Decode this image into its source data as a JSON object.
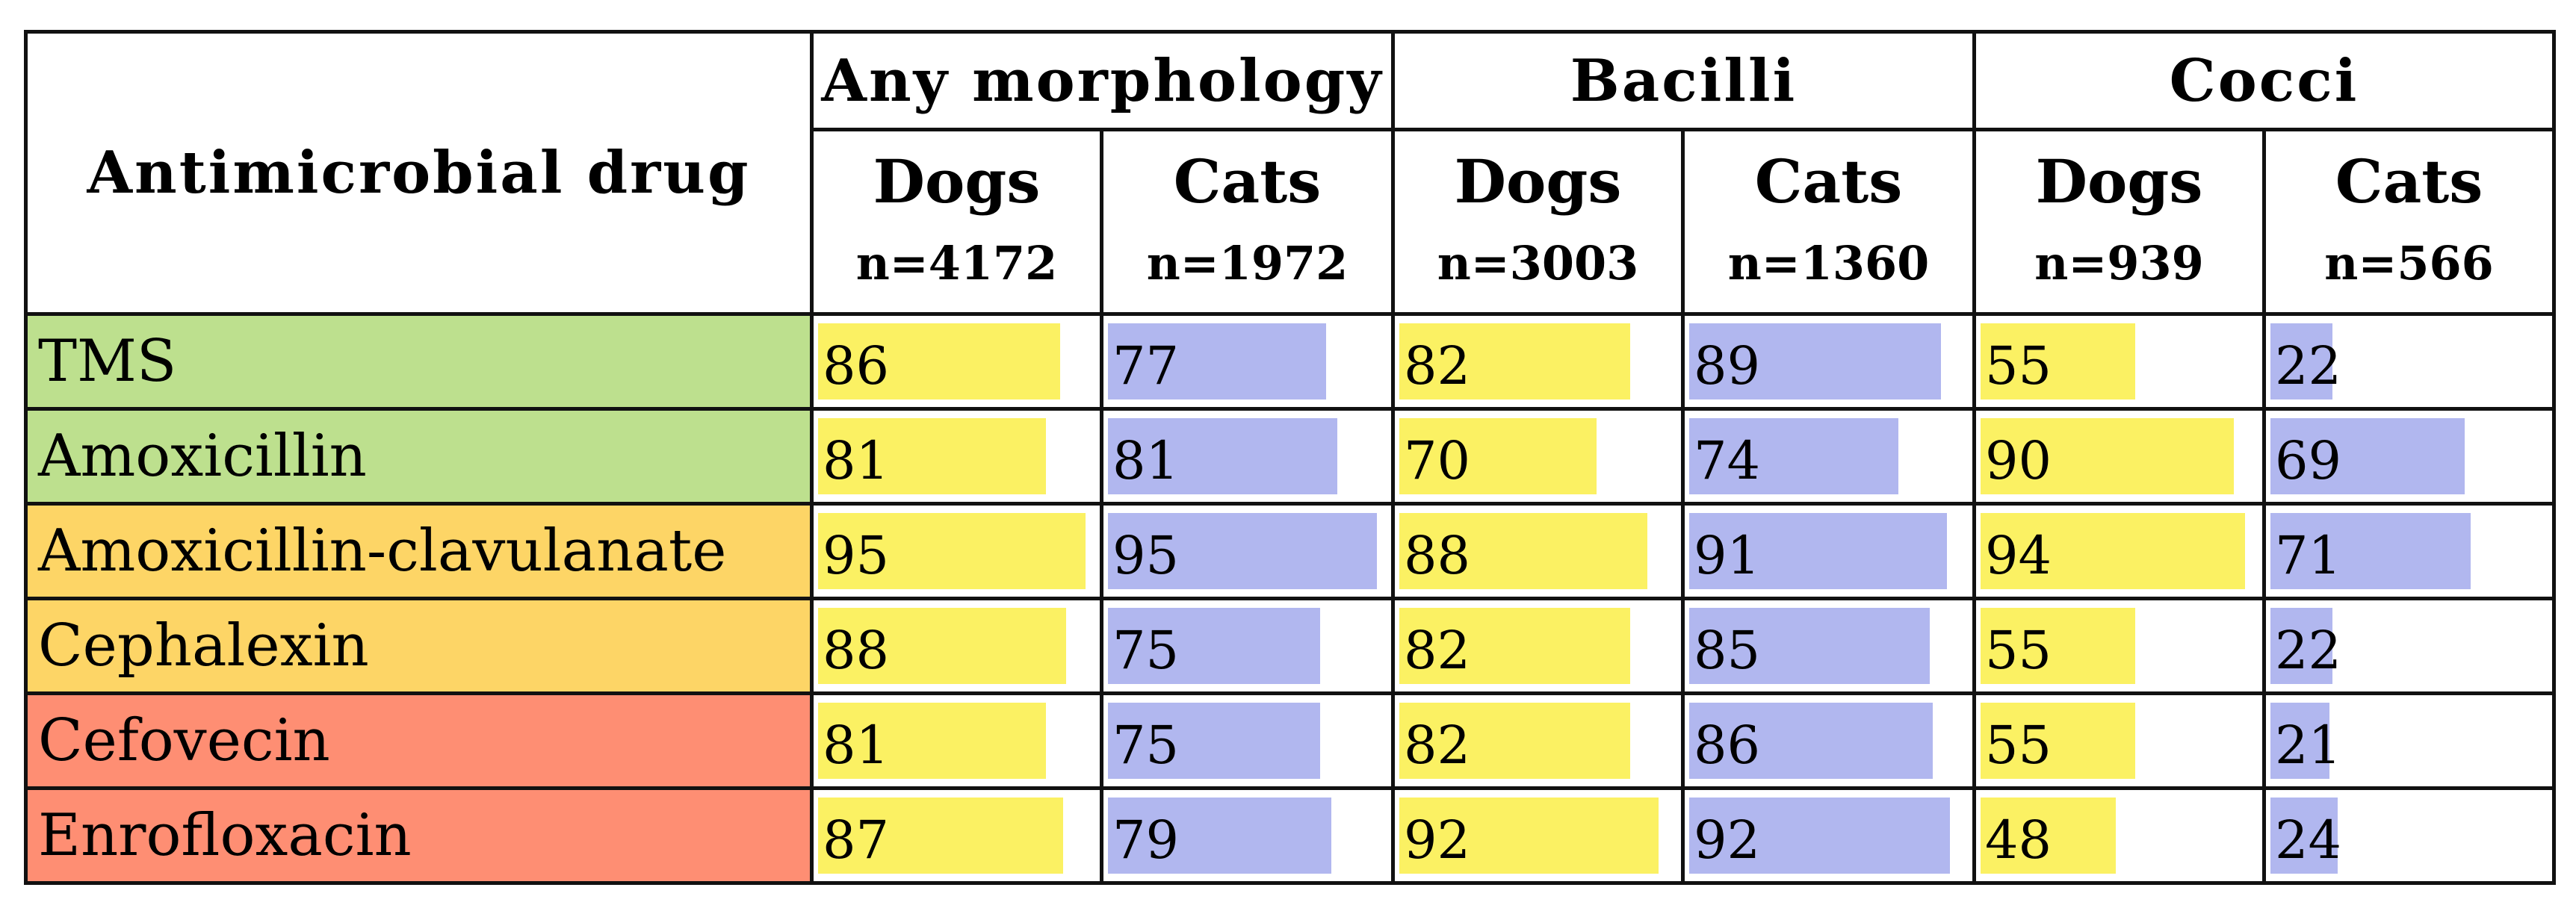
{
  "chart_data": {
    "type": "table",
    "header": {
      "drug_label": "Antimicrobial drug",
      "groups": [
        "Any morphology",
        "Bacilli",
        "Cocci"
      ],
      "species": [
        {
          "label": "Dogs",
          "n": "n=4172"
        },
        {
          "label": "Cats",
          "n": "n=1972"
        },
        {
          "label": "Dogs",
          "n": "n=3003"
        },
        {
          "label": "Cats",
          "n": "n=1360"
        },
        {
          "label": "Dogs",
          "n": "n=939"
        },
        {
          "label": "Cats",
          "n": "n=566"
        }
      ]
    },
    "rows": [
      {
        "drug": "TMS",
        "color": "#bde08e",
        "values": [
          86,
          77,
          82,
          89,
          55,
          22
        ]
      },
      {
        "drug": "Amoxicillin",
        "color": "#bde08e",
        "values": [
          81,
          81,
          70,
          74,
          90,
          69
        ]
      },
      {
        "drug": "Amoxicillin-clavulanate",
        "color": "#fdd566",
        "values": [
          95,
          95,
          88,
          91,
          94,
          71
        ]
      },
      {
        "drug": "Cephalexin",
        "color": "#fdd566",
        "values": [
          88,
          75,
          82,
          85,
          55,
          22
        ]
      },
      {
        "drug": "Cefovecin",
        "color": "#fe8e73",
        "values": [
          81,
          75,
          82,
          86,
          55,
          21
        ]
      },
      {
        "drug": "Enrofloxacin",
        "color": "#fe8e73",
        "values": [
          87,
          79,
          92,
          92,
          48,
          24
        ]
      }
    ],
    "bar_colors": {
      "dogs": "#fbf163",
      "cats": "#b1b7ef"
    },
    "value_range": [
      0,
      100
    ]
  }
}
